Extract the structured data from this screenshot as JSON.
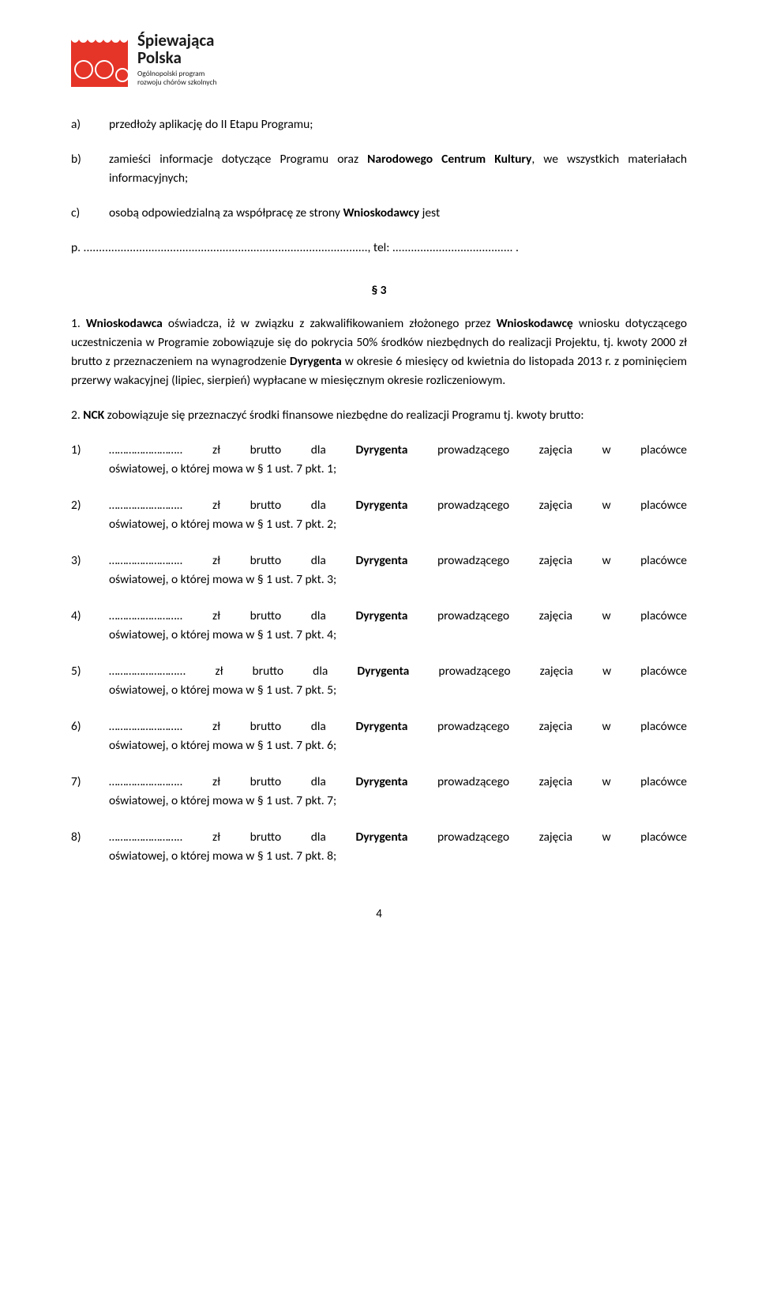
{
  "logo": {
    "title_line1": "Śpiewająca",
    "title_line2": "Polska",
    "subtitle_line1": "Ogólnopolski program",
    "subtitle_line2": "rozwoju chórów szkolnych"
  },
  "item_a": {
    "label": "a)",
    "text": "przedłoży aplikację do II Etapu Programu;"
  },
  "item_b": {
    "label": "b)",
    "text_before": "zamieści informacje dotyczące Programu oraz ",
    "bold": "Narodowego Centrum Kultury",
    "text_after": ", we wszystkich materiałach informacyjnych;"
  },
  "item_c": {
    "label": "c)",
    "line1": "osobą    odpowiedzialną    za    współpracę    ze    strony    ",
    "bold": "Wnioskodawcy",
    "line1_after": "    jest",
    "line2": "p. ............................................................................................, tel: ....................................... ."
  },
  "section3": {
    "header": "§ 3",
    "p1_before1": "1.        ",
    "p1_bold1": "Wnioskodawca",
    "p1_text1": "   oświadcza,   iż   w   związku   z   zakwalifikowaniem   złożonego przez ",
    "p1_bold2": "Wnioskodawcę",
    "p1_text2": " wniosku dotyczącego uczestniczenia w Programie zobowiązuje się do pokrycia 50% środków niezbędnych do realizacji Projektu, tj. kwoty 2000 zł brutto z przeznaczeniem na wynagrodzenie ",
    "p1_bold3": "Dyrygenta",
    "p1_text3": " w okresie 6 miesięcy od kwietnia do listopada 2013 r. z pominięciem przerwy wakacyjnej (lipiec, sierpień) wypłacane w miesięcznym okresie rozliczeniowym.",
    "p2_before": "2.        ",
    "p2_bold": "NCK",
    "p2_text": " zobowiązuje się przeznaczyć środki finansowe niezbędne do realizacji Programu tj. kwoty brutto:"
  },
  "list_items": [
    {
      "num": "1)",
      "dots": "……………………..",
      "mid": "  zł  brutto  dla  ",
      "bold": "Dyrygenta",
      "mid2": "  prowadzącego  zajęcia  w  placówce",
      "line2": "oświatowej, o której mowa  w § 1 ust. 7 pkt. 1;"
    },
    {
      "num": "2)",
      "dots": "……………………..",
      "mid": "  zł  brutto  dla  ",
      "bold": "Dyrygenta",
      "mid2": "  prowadzącego  zajęcia  w  placówce",
      "line2": "oświatowej, o której mowa  w § 1 ust. 7 pkt. 2;"
    },
    {
      "num": "3)",
      "dots": "……………………..",
      "mid": "  zł  brutto  dla  ",
      "bold": "Dyrygenta",
      "mid2": "  prowadzącego  zajęcia  w  placówce",
      "line2": "oświatowej, o której mowa  w § 1 ust. 7 pkt. 3;"
    },
    {
      "num": "4)",
      "dots": "……………………..",
      "mid": "  zł  brutto  dla  ",
      "bold": "Dyrygenta",
      "mid2": "  prowadzącego  zajęcia  w  placówce",
      "line2": "oświatowej, o której mowa  w § 1 ust. 7 pkt. 4;"
    },
    {
      "num": "5)",
      "dots": "……………………...",
      "mid": "  zł  brutto  dla  ",
      "bold": "Dyrygenta",
      "mid2": "  prowadzącego  zajęcia  w  placówce",
      "line2": "oświatowej, o której mowa  w § 1 ust. 7 pkt. 5;"
    },
    {
      "num": "6)",
      "dots": "……………………..",
      "mid": "  zł  brutto  dla  ",
      "bold": "Dyrygenta",
      "mid2": "  prowadzącego  zajęcia  w  placówce",
      "line2": "oświatowej, o której mowa  w § 1 ust. 7 pkt. 6;"
    },
    {
      "num": "7)",
      "dots": "……………………..",
      "mid": "  zł  brutto  dla  ",
      "bold": "Dyrygenta",
      "mid2": "  prowadzącego  zajęcia  w  placówce",
      "line2": "oświatowej, o której mowa  w § 1 ust. 7 pkt. 7;"
    },
    {
      "num": "8)",
      "dots": "……………………..",
      "mid": "  zł  brutto  dla  ",
      "bold": "Dyrygenta",
      "mid2": "  prowadzącego  zajęcia  w  placówce",
      "line2": "oświatowej, o której mowa  w § 1 ust. 7 pkt. 8;"
    }
  ],
  "page_number": "4"
}
